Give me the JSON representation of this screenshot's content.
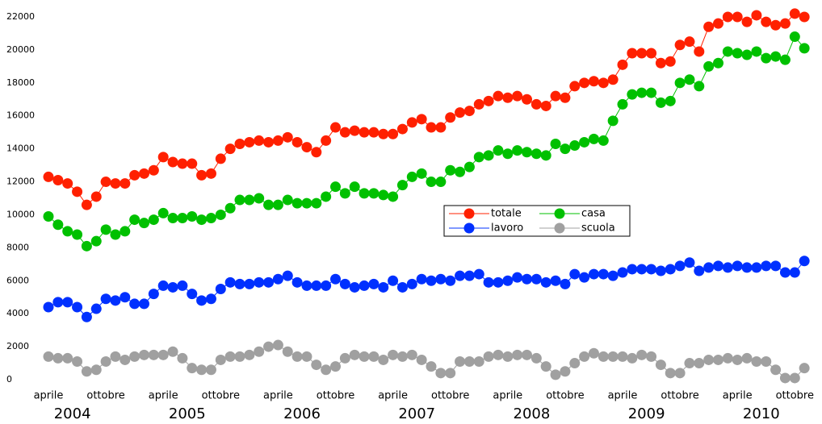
{
  "chart_data": {
    "type": "line",
    "categories": [
      "aprile",
      null,
      null,
      null,
      null,
      null,
      "ottobre",
      null,
      null,
      null,
      null,
      null,
      "aprile",
      null,
      null,
      null,
      null,
      null,
      "ottobre",
      null,
      null,
      null,
      null,
      null,
      "aprile",
      null,
      null,
      null,
      null,
      null,
      "ottobre",
      null,
      null,
      null,
      null,
      null,
      "aprile",
      null,
      null,
      null,
      null,
      null,
      "ottobre",
      null,
      null,
      null,
      null,
      null,
      "aprile",
      null,
      null,
      null,
      null,
      null,
      "ottobre",
      null,
      null,
      null,
      null,
      null,
      "aprile",
      null,
      null,
      null,
      null,
      null,
      "ottobre",
      null,
      null,
      null,
      null,
      null,
      "aprile",
      null,
      null,
      null,
      null,
      null,
      "ottobre",
      null
    ],
    "x_groups": [
      "2004",
      "2005",
      "2006",
      "2007",
      "2008",
      "2009",
      "2010"
    ],
    "ylim": [
      0,
      22000
    ],
    "yticks": [
      0,
      2000,
      4000,
      6000,
      8000,
      10000,
      12000,
      14000,
      16000,
      18000,
      20000,
      22000
    ],
    "legend": "center",
    "series": [
      {
        "name": "totale",
        "color": "#ff2000",
        "values": [
          12300,
          12100,
          11900,
          11400,
          10600,
          11100,
          12000,
          11900,
          11900,
          12400,
          12500,
          12700,
          13500,
          13200,
          13100,
          13100,
          12400,
          12500,
          13400,
          14000,
          14300,
          14400,
          14500,
          14400,
          14500,
          14700,
          14400,
          14100,
          13800,
          14500,
          15300,
          15000,
          15100,
          15000,
          15000,
          14900,
          14900,
          15200,
          15600,
          15800,
          15300,
          15300,
          15900,
          16200,
          16300,
          16700,
          16900,
          17200,
          17100,
          17200,
          17000,
          16700,
          16600,
          17200,
          17100,
          17800,
          18000,
          18100,
          18000,
          18200,
          19100,
          19800,
          19800,
          19800,
          19200,
          19300,
          20300,
          20500,
          19900,
          21400,
          21600,
          22000,
          22000,
          21700,
          22100,
          21700,
          21500,
          21600,
          22200,
          22000
        ]
      },
      {
        "name": "casa",
        "color": "#00c000",
        "values": [
          9900,
          9400,
          9000,
          8800,
          8100,
          8400,
          9100,
          8800,
          9000,
          9700,
          9500,
          9700,
          10100,
          9800,
          9800,
          9900,
          9700,
          9800,
          10000,
          10400,
          10900,
          10900,
          11000,
          10600,
          10600,
          10900,
          10700,
          10700,
          10700,
          11100,
          11700,
          11300,
          11700,
          11300,
          11300,
          11200,
          11100,
          11800,
          12300,
          12500,
          12000,
          12000,
          12700,
          12600,
          12900,
          13500,
          13600,
          13900,
          13700,
          13900,
          13800,
          13700,
          13600,
          14300,
          14000,
          14200,
          14400,
          14600,
          14500,
          15700,
          16700,
          17300,
          17400,
          17400,
          16800,
          16900,
          18000,
          18200,
          17800,
          19000,
          19200,
          19900,
          19800,
          19700,
          19900,
          19500,
          19600,
          19400,
          20800,
          20100
        ]
      },
      {
        "name": "lavoro",
        "color": "#0030ff",
        "values": [
          4400,
          4700,
          4700,
          4400,
          3800,
          4300,
          4900,
          4800,
          5000,
          4600,
          4600,
          5200,
          5700,
          5600,
          5700,
          5200,
          4800,
          4900,
          5500,
          5900,
          5800,
          5800,
          5900,
          5900,
          6100,
          6300,
          5900,
          5700,
          5700,
          5700,
          6100,
          5800,
          5600,
          5700,
          5800,
          5600,
          6000,
          5600,
          5800,
          6100,
          6000,
          6100,
          6000,
          6300,
          6300,
          6400,
          5900,
          5900,
          6000,
          6200,
          6100,
          6100,
          5900,
          6000,
          5800,
          6400,
          6200,
          6400,
          6400,
          6300,
          6500,
          6700,
          6700,
          6700,
          6600,
          6700,
          6900,
          7100,
          6600,
          6800,
          6900,
          6800,
          6900,
          6800,
          6800,
          6900,
          6900,
          6500,
          6500,
          7200
        ]
      },
      {
        "name": "scuola",
        "color": "#a0a0a0",
        "values": [
          1400,
          1300,
          1300,
          1100,
          500,
          600,
          1100,
          1400,
          1200,
          1400,
          1500,
          1500,
          1500,
          1700,
          1300,
          700,
          600,
          600,
          1200,
          1400,
          1400,
          1500,
          1700,
          2000,
          2100,
          1700,
          1400,
          1400,
          900,
          600,
          800,
          1300,
          1500,
          1400,
          1400,
          1200,
          1500,
          1400,
          1500,
          1200,
          800,
          400,
          400,
          1100,
          1100,
          1100,
          1400,
          1500,
          1400,
          1500,
          1500,
          1300,
          800,
          300,
          500,
          1000,
          1400,
          1600,
          1400,
          1400,
          1400,
          1300,
          1500,
          1400,
          900,
          400,
          400,
          1000,
          1000,
          1200,
          1200,
          1300,
          1200,
          1300,
          1100,
          1100,
          600,
          100,
          100,
          700
        ]
      }
    ]
  }
}
